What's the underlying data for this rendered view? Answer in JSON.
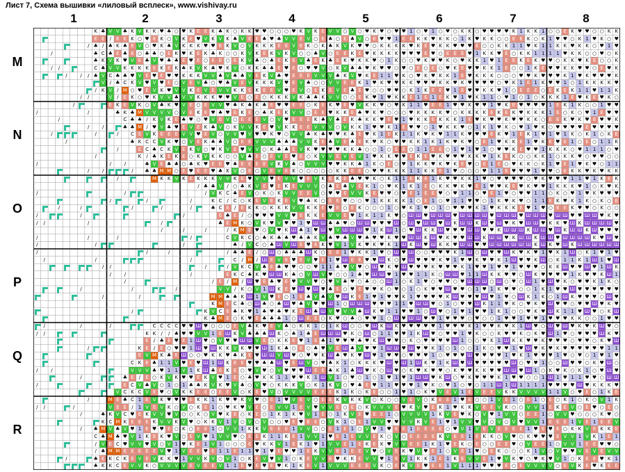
{
  "page_title": "Лист 7, Схема вышивки «лиловый всплеск», www.vishivay.ru",
  "column_labels": [
    "1",
    "2",
    "3",
    "4",
    "5",
    "6",
    "7",
    "8"
  ],
  "row_labels": [
    "M",
    "N",
    "O",
    "P",
    "Q",
    "R"
  ],
  "legend_symbols": [
    {
      "symbol": "K",
      "color": "#ffffff",
      "text_color": "#000000"
    },
    {
      "symbol": "V",
      "color": "#3cc43c",
      "text_color": "#ffffff"
    },
    {
      "symbol": "E",
      "color": "#e58f80",
      "text_color": "#ffffff"
    },
    {
      "symbol": "M",
      "color": "#e0600a",
      "text_color": "#ffffff"
    },
    {
      "symbol": "1",
      "color": "#c7c7ec",
      "text_color": "#000000"
    },
    {
      "symbol": "Ш",
      "color": "#8d4fd1",
      "text_color": "#ffffff"
    },
    {
      "symbol": "♥",
      "color": "#ffffff",
      "text_color": "#000000"
    },
    {
      "symbol": "♣",
      "color": "#ffffff",
      "text_color": "#000000"
    },
    {
      "symbol": "○",
      "color": "#ffffff",
      "text_color": "#000000"
    },
    {
      "symbol": "C",
      "color": "#ffffff",
      "text_color": "#000000"
    },
    {
      "symbol": "/",
      "color": "#ffffff",
      "text_color": "#000000"
    },
    {
      "symbol": "▫",
      "color": "#2fbf9a",
      "text_color": "#ffffff"
    }
  ],
  "colors": {
    "grid_line": "#9a9a9a",
    "major_line": "#000000",
    "border": "#000000"
  }
}
